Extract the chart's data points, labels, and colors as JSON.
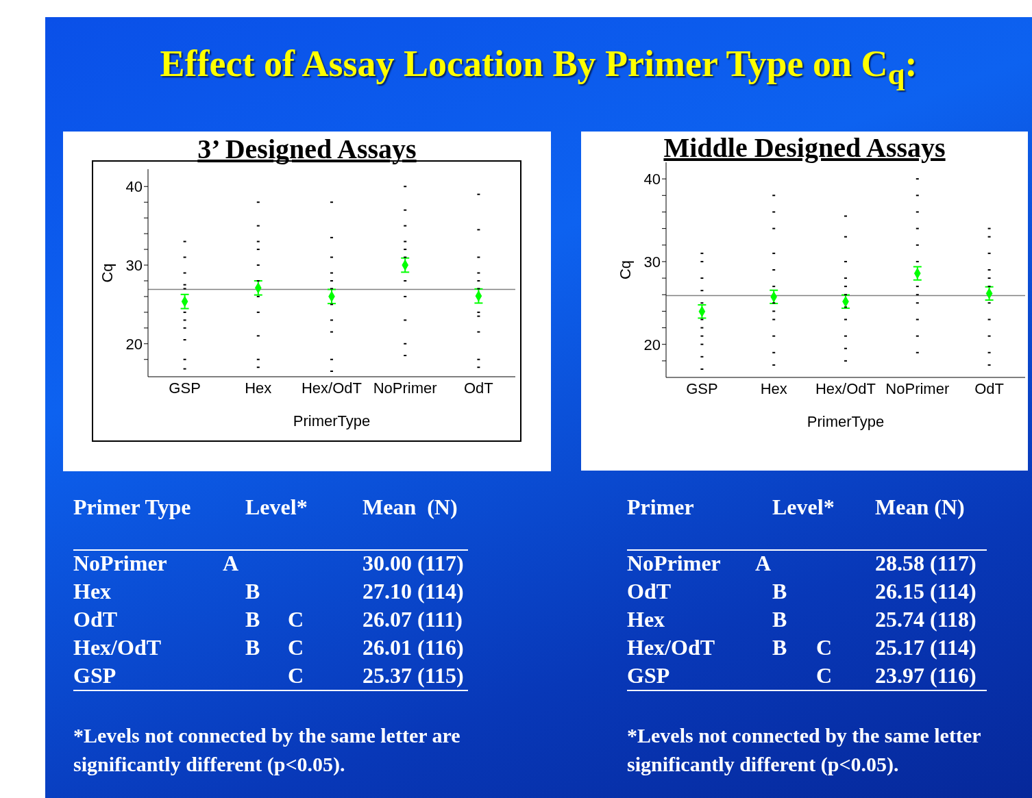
{
  "chart_data": [
    {
      "type": "other",
      "title": "Effect of Assay Location By Primer Type on C$_{q}$:"
    },
    {
      "type": "scatter",
      "title": "3’ Designed Assays",
      "xlabel": "PrimerType",
      "ylabel": "Cq",
      "categories": [
        "GSP",
        "Hex",
        "Hex/OdT",
        "NoPrimer",
        "OdT"
      ],
      "ylim": [
        15.8,
        42.2
      ],
      "yticks": [
        {
          "value": 18,
          "label": null
        },
        20,
        {
          "value": 22,
          "label": null
        },
        {
          "value": 24,
          "label": null
        },
        {
          "value": 26,
          "label": null
        },
        {
          "value": 28,
          "label": null
        },
        30,
        {
          "value": 32,
          "label": null
        },
        {
          "value": 34,
          "label": null
        },
        {
          "value": 36,
          "label": null
        },
        {
          "value": 38,
          "label": null
        },
        40
      ],
      "legend": false,
      "series": [
        {
          "marker": "square",
          "color": "#000000",
          "x": [
            "GSP",
            "GSP",
            "GSP",
            "GSP",
            "GSP",
            "GSP",
            "GSP",
            "GSP",
            "GSP",
            "GSP",
            "GSP",
            "Hex",
            "Hex",
            "Hex",
            "Hex",
            "Hex",
            "Hex",
            "Hex",
            "Hex",
            "Hex",
            "Hex",
            "Hex",
            "Hex/OdT",
            "Hex/OdT",
            "Hex/OdT",
            "Hex/OdT",
            "Hex/OdT",
            "Hex/OdT",
            "Hex/OdT",
            "Hex/OdT",
            "Hex/OdT",
            "Hex/OdT",
            "Hex/OdT",
            "NoPrimer",
            "NoPrimer",
            "NoPrimer",
            "NoPrimer",
            "NoPrimer",
            "NoPrimer",
            "NoPrimer",
            "NoPrimer",
            "NoPrimer",
            "NoPrimer",
            "NoPrimer",
            "OdT",
            "OdT",
            "OdT",
            "OdT",
            "OdT",
            "OdT",
            "OdT",
            "OdT",
            "OdT",
            "OdT",
            "OdT"
          ],
          "values": [
            16.8,
            18,
            20.5,
            22,
            23,
            24,
            27.5,
            27,
            29,
            31,
            33,
            17,
            18,
            21,
            24,
            26,
            33,
            28,
            30,
            32,
            35,
            38,
            16.5,
            18,
            21.5,
            23,
            25,
            28,
            27,
            29,
            31,
            33.5,
            38,
            18.5,
            20,
            23,
            26,
            28,
            32,
            31,
            33,
            35,
            37,
            40,
            17,
            18,
            21.5,
            23.5,
            24,
            28,
            27,
            29,
            31,
            34.5,
            39
          ]
        },
        {
          "marker": "diamond",
          "color": "#00ff00",
          "x": [
            "GSP",
            "Hex",
            "Hex/OdT",
            "NoPrimer",
            "OdT"
          ],
          "values": [
            25.37,
            27.1,
            26.01,
            30.0,
            26.07
          ],
          "errors": [
            0.9,
            0.9,
            0.9,
            0.9,
            0.9
          ]
        }
      ],
      "ref_lines": [
        {
          "axis": "y",
          "value": 26.9,
          "color": "#808080"
        }
      ],
      "annotations": [
        "Primer Type\t\tLevel*\t\tMean  (N)",
        "NoPrimer\tA\t\t\t30.00 (117)",
        "Hex\t\tB\t\t27.10 (114)",
        "OdT\t\tB\tC\t26.07 (111)",
        "Hex/OdT\t\tB\tC\t26.01 (116)",
        "GSP\t\t\tC\t25.37 (115)",
        "*Levels not connected by the same letter are",
        "significantly different (p<0.05)."
      ]
    },
    {
      "type": "scatter",
      "title": "Middle Designed Assays",
      "xlabel": "PrimerType",
      "ylabel": "Cq",
      "categories": [
        "GSP",
        "Hex",
        "Hex/OdT",
        "NoPrimer",
        "OdT"
      ],
      "ylim": [
        16,
        42
      ],
      "yticks": [
        {
          "value": 18,
          "label": null
        },
        20,
        {
          "value": 22,
          "label": null
        },
        {
          "value": 24,
          "label": null
        },
        {
          "value": 26,
          "label": null
        },
        {
          "value": 28,
          "label": null
        },
        30,
        {
          "value": 32,
          "label": null
        },
        {
          "value": 34,
          "label": null
        },
        {
          "value": 36,
          "label": null
        },
        {
          "value": 38,
          "label": null
        },
        40
      ],
      "legend": false,
      "series": [
        {
          "marker": "square",
          "color": "#000000",
          "x": [
            "GSP",
            "GSP",
            "GSP",
            "GSP",
            "GSP",
            "GSP",
            "GSP",
            "GSP",
            "GSP",
            "GSP",
            "GSP",
            "Hex",
            "Hex",
            "Hex",
            "Hex",
            "Hex",
            "Hex",
            "Hex",
            "Hex",
            "Hex",
            "Hex",
            "Hex",
            "Hex",
            "Hex/OdT",
            "Hex/OdT",
            "Hex/OdT",
            "Hex/OdT",
            "Hex/OdT",
            "Hex/OdT",
            "Hex/OdT",
            "Hex/OdT",
            "Hex/OdT",
            "Hex/OdT",
            "Hex/OdT",
            "NoPrimer",
            "NoPrimer",
            "NoPrimer",
            "NoPrimer",
            "NoPrimer",
            "NoPrimer",
            "NoPrimer",
            "NoPrimer",
            "NoPrimer",
            "NoPrimer",
            "NoPrimer",
            "NoPrimer",
            "OdT",
            "OdT",
            "OdT",
            "OdT",
            "OdT",
            "OdT",
            "OdT",
            "OdT",
            "OdT",
            "OdT",
            "OdT"
          ],
          "values": [
            17,
            18.5,
            20,
            22,
            23,
            21,
            25,
            26.5,
            28,
            30,
            31,
            17.5,
            19,
            21,
            23,
            25,
            24,
            27,
            29,
            31,
            34,
            36,
            38,
            18,
            19.5,
            21,
            23,
            24.5,
            27,
            26,
            28,
            30,
            33,
            35.5,
            19,
            21,
            23,
            25,
            27,
            26,
            30,
            32,
            34,
            36,
            38,
            40,
            17.5,
            19,
            21,
            23,
            25,
            28,
            27,
            29,
            31,
            33,
            34
          ]
        },
        {
          "marker": "diamond",
          "color": "#00ff00",
          "x": [
            "GSP",
            "Hex",
            "Hex/OdT",
            "NoPrimer",
            "OdT"
          ],
          "values": [
            23.97,
            25.74,
            25.17,
            28.58,
            26.15
          ],
          "errors": [
            0.8,
            0.8,
            0.8,
            0.8,
            0.8
          ]
        }
      ],
      "ref_lines": [
        {
          "axis": "y",
          "value": 25.9,
          "color": "#808080"
        }
      ],
      "annotations": [
        "Primer\t\tLevel*\t\tMean (N)",
        "NoPrimer\tA\t\t\t28.58 (117)",
        "OdT\t\tB\t\t26.15 (114)",
        "Hex\t\tB\t\t25.74 (118)",
        "Hex/OdT\t\tB\tC\t25.17 (114)",
        "GSP\t\t\tC\t23.97 (116)",
        "*Levels not connected by the same letter",
        "significantly different (p<0.05)."
      ]
    }
  ]
}
